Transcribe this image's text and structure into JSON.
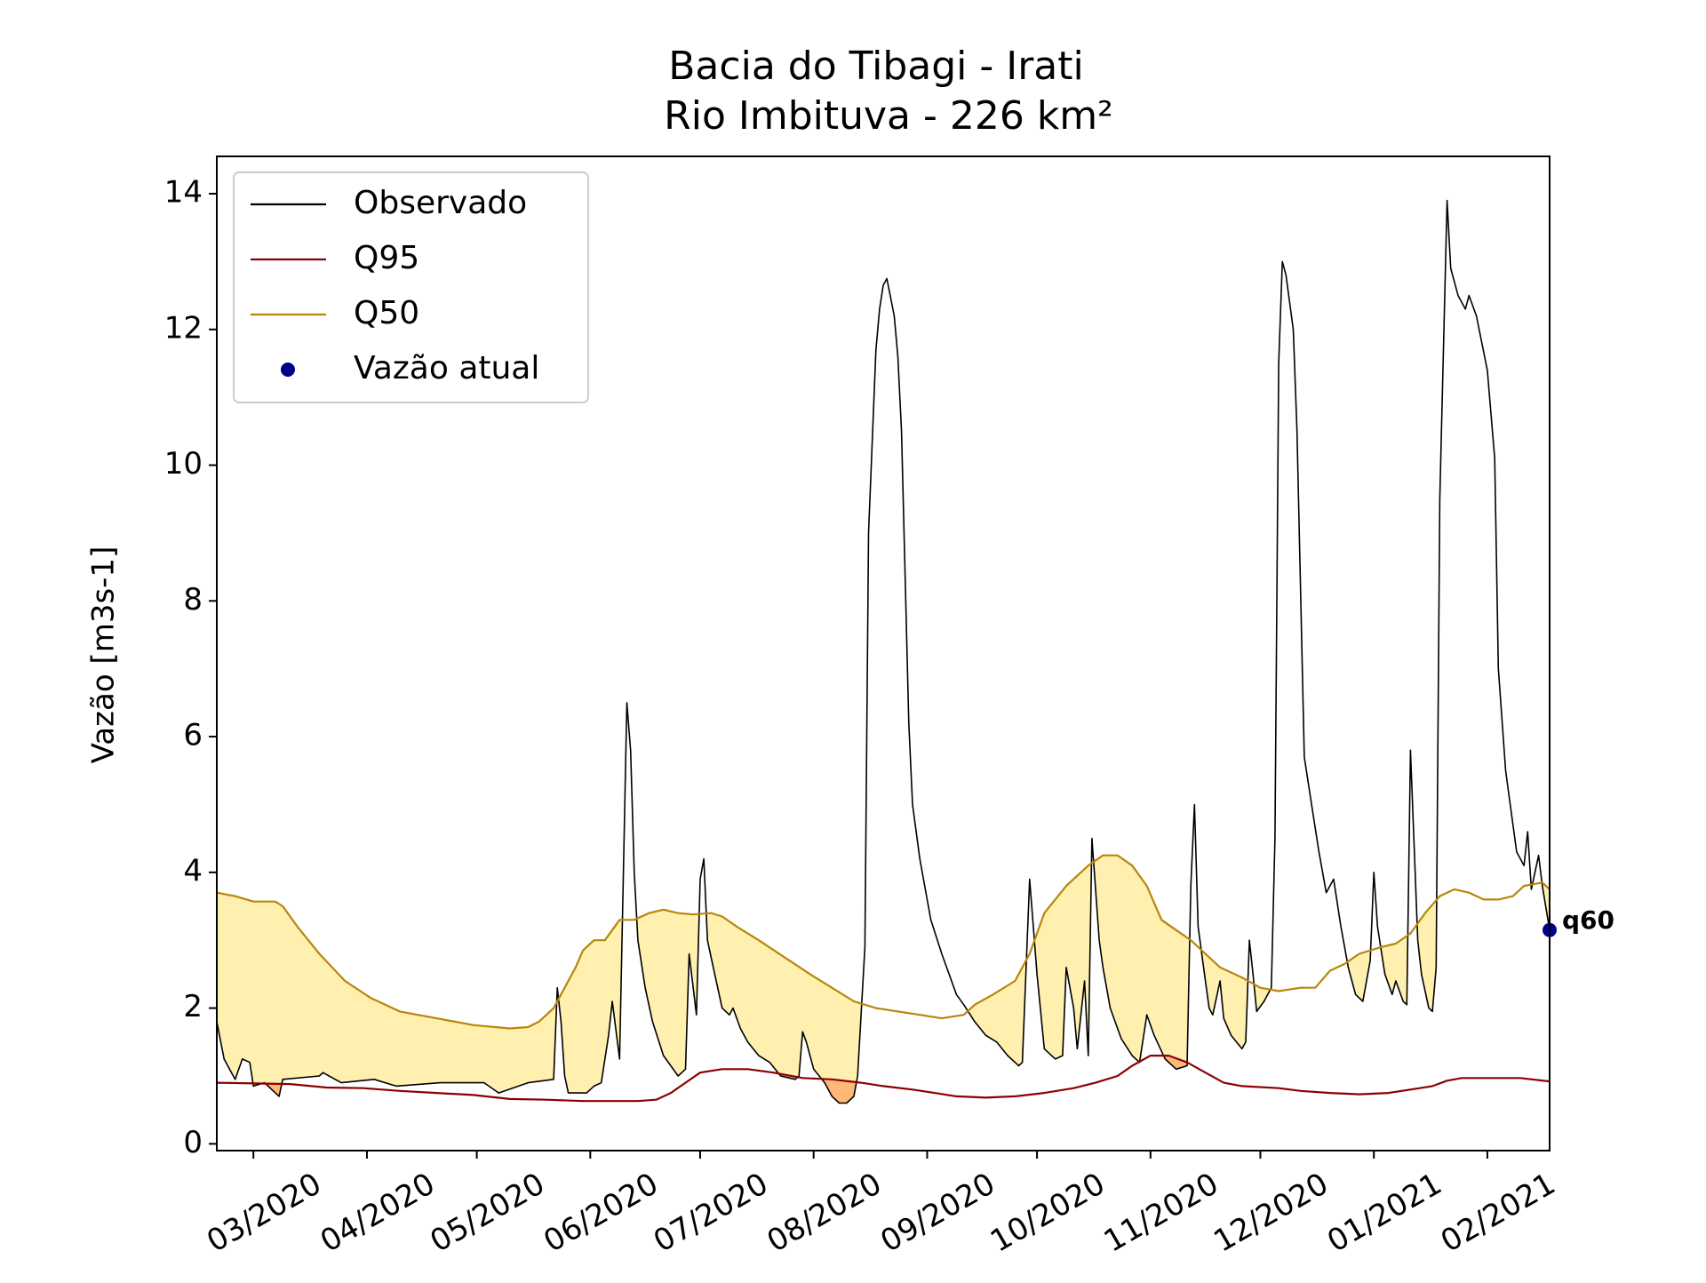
{
  "chart_data": {
    "type": "line",
    "title": "Bacia do Tibagi - Irati",
    "subtitle": "Rio Imbituva - 226 km²",
    "ylabel": "Vazão [m3s-1]",
    "xlim": [
      0,
      364
    ],
    "xticks": [
      {
        "value": 10,
        "label": "03/2020"
      },
      {
        "value": 41,
        "label": "04/2020"
      },
      {
        "value": 71,
        "label": "05/2020"
      },
      {
        "value": 102,
        "label": "06/2020"
      },
      {
        "value": 132,
        "label": "07/2020"
      },
      {
        "value": 163,
        "label": "08/2020"
      },
      {
        "value": 194,
        "label": "09/2020"
      },
      {
        "value": 224,
        "label": "10/2020"
      },
      {
        "value": 255,
        "label": "11/2020"
      },
      {
        "value": 285,
        "label": "12/2020"
      },
      {
        "value": 316,
        "label": "01/2021"
      },
      {
        "value": 347,
        "label": "02/2021"
      }
    ],
    "ylim": [
      -0.1,
      14.55
    ],
    "yticks": [
      0,
      2,
      4,
      6,
      8,
      10,
      12,
      14
    ],
    "legend": "upper left",
    "fill_colors": {
      "below_q50": "#fff0b0",
      "below_q95": "#ffb878"
    },
    "series": [
      {
        "name": "Observado",
        "color": "#000000",
        "x": [
          0,
          2,
          4,
          5,
          7,
          9,
          10,
          13,
          17,
          18,
          28,
          29,
          34,
          43,
          49,
          61,
          73,
          77,
          85,
          92,
          93,
          94,
          95,
          96,
          101,
          103,
          105,
          107,
          108,
          110,
          112,
          113,
          114,
          115,
          117,
          119,
          122,
          126,
          128,
          129,
          131,
          132,
          133,
          134,
          136,
          138,
          140,
          141,
          143,
          145,
          148,
          151,
          154,
          158,
          159,
          160,
          161,
          163,
          166,
          168,
          170,
          172,
          174,
          175,
          177,
          178,
          180,
          181,
          182,
          183,
          185,
          186,
          187,
          189,
          190,
          192,
          195,
          198,
          202,
          204,
          207,
          210,
          213,
          216,
          219,
          220,
          222,
          224,
          226,
          229,
          231,
          232,
          234,
          235,
          237,
          238,
          239,
          241,
          242,
          244,
          247,
          250,
          252,
          254,
          256,
          259,
          262,
          265,
          266,
          267,
          268,
          270,
          271,
          272,
          274,
          275,
          277,
          280,
          281,
          282,
          283,
          284,
          286,
          288,
          289,
          290,
          291,
          292,
          294,
          295,
          297,
          299,
          301,
          303,
          305,
          307,
          309,
          311,
          313,
          315,
          316,
          317,
          319,
          321,
          322,
          324,
          325,
          326,
          328,
          329,
          331,
          332,
          333,
          334,
          336,
          337,
          339,
          341,
          342,
          344,
          347,
          349,
          350,
          352,
          355,
          357,
          358,
          359,
          361,
          362,
          364
        ],
        "values": [
          1.8,
          1.25,
          1.05,
          0.95,
          1.25,
          1.2,
          0.85,
          0.9,
          0.7,
          0.95,
          1.0,
          1.05,
          0.9,
          0.95,
          0.85,
          0.9,
          0.9,
          0.75,
          0.9,
          0.95,
          2.3,
          1.8,
          1.0,
          0.75,
          0.75,
          0.85,
          0.9,
          1.6,
          2.1,
          1.25,
          6.5,
          5.8,
          4.0,
          3.0,
          2.3,
          1.8,
          1.3,
          1.0,
          1.1,
          2.8,
          1.9,
          3.9,
          4.2,
          3.0,
          2.5,
          2.0,
          1.9,
          2.0,
          1.7,
          1.5,
          1.3,
          1.2,
          1.0,
          0.95,
          1.0,
          1.65,
          1.5,
          1.1,
          0.9,
          0.7,
          0.6,
          0.6,
          0.7,
          1.0,
          2.9,
          9.0,
          11.7,
          12.3,
          12.65,
          12.75,
          12.2,
          11.6,
          10.5,
          6.2,
          5.0,
          4.2,
          3.3,
          2.8,
          2.2,
          2.05,
          1.8,
          1.6,
          1.5,
          1.3,
          1.15,
          1.2,
          3.9,
          2.5,
          1.4,
          1.25,
          1.3,
          2.6,
          2.0,
          1.4,
          2.4,
          1.3,
          4.5,
          3.0,
          2.6,
          2.0,
          1.55,
          1.3,
          1.2,
          1.9,
          1.6,
          1.25,
          1.1,
          1.15,
          3.8,
          5.0,
          3.2,
          2.4,
          2.0,
          1.9,
          2.4,
          1.85,
          1.6,
          1.4,
          1.5,
          3.0,
          2.5,
          1.95,
          2.1,
          2.3,
          4.5,
          11.5,
          13.0,
          12.8,
          12.0,
          10.5,
          5.7,
          5.0,
          4.3,
          3.7,
          3.9,
          3.2,
          2.6,
          2.2,
          2.1,
          2.7,
          4.0,
          3.2,
          2.5,
          2.2,
          2.4,
          2.1,
          2.05,
          5.8,
          3.0,
          2.5,
          2.0,
          1.95,
          2.6,
          9.5,
          13.9,
          12.9,
          12.5,
          12.3,
          12.5,
          12.2,
          11.4,
          10.1,
          7.0,
          5.5,
          4.3,
          4.1,
          4.6,
          3.75,
          4.25,
          3.8,
          3.15
        ]
      },
      {
        "name": "Q95",
        "color": "#8b0000",
        "x": [
          0,
          20,
          30,
          40,
          50,
          60,
          70,
          80,
          90,
          100,
          115,
          120,
          124,
          128,
          132,
          138,
          145,
          152,
          160,
          168,
          176,
          182,
          190,
          196,
          202,
          210,
          218,
          226,
          234,
          240,
          246,
          250,
          255,
          260,
          265,
          270,
          275,
          280,
          290,
          296,
          304,
          312,
          320,
          326,
          332,
          336,
          340,
          350,
          356,
          364
        ],
        "values": [
          0.9,
          0.88,
          0.83,
          0.82,
          0.78,
          0.75,
          0.72,
          0.66,
          0.65,
          0.63,
          0.63,
          0.65,
          0.75,
          0.9,
          1.05,
          1.1,
          1.1,
          1.05,
          0.97,
          0.95,
          0.9,
          0.85,
          0.8,
          0.75,
          0.7,
          0.68,
          0.7,
          0.75,
          0.82,
          0.9,
          1.0,
          1.15,
          1.3,
          1.3,
          1.2,
          1.05,
          0.9,
          0.85,
          0.82,
          0.78,
          0.75,
          0.73,
          0.75,
          0.8,
          0.85,
          0.93,
          0.97,
          0.97,
          0.97,
          0.92
        ]
      },
      {
        "name": "Q50",
        "color": "#b8860b",
        "x": [
          0,
          5,
          10,
          16,
          18,
          22,
          28,
          35,
          42,
          50,
          60,
          70,
          80,
          85,
          88,
          92,
          95,
          98,
          100,
          103,
          106,
          110,
          114,
          118,
          122,
          126,
          130,
          135,
          138,
          142,
          148,
          155,
          162,
          168,
          174,
          180,
          186,
          192,
          198,
          204,
          207,
          212,
          218,
          222,
          226,
          232,
          238,
          242,
          246,
          250,
          254,
          258,
          262,
          266,
          270,
          274,
          280,
          285,
          290,
          296,
          300,
          304,
          308,
          312,
          318,
          322,
          326,
          330,
          334,
          338,
          342,
          346,
          350,
          354,
          357,
          362,
          364
        ],
        "values": [
          3.7,
          3.65,
          3.57,
          3.57,
          3.5,
          3.2,
          2.8,
          2.4,
          2.15,
          1.95,
          1.85,
          1.75,
          1.7,
          1.72,
          1.8,
          2.0,
          2.3,
          2.6,
          2.85,
          3.0,
          3.0,
          3.3,
          3.3,
          3.4,
          3.45,
          3.4,
          3.38,
          3.4,
          3.35,
          3.2,
          3.0,
          2.75,
          2.5,
          2.3,
          2.1,
          2.0,
          1.95,
          1.9,
          1.85,
          1.9,
          2.05,
          2.2,
          2.4,
          2.8,
          3.4,
          3.8,
          4.1,
          4.25,
          4.25,
          4.1,
          3.8,
          3.3,
          3.15,
          3.0,
          2.8,
          2.6,
          2.45,
          2.3,
          2.25,
          2.3,
          2.3,
          2.55,
          2.65,
          2.8,
          2.9,
          2.95,
          3.1,
          3.4,
          3.65,
          3.75,
          3.7,
          3.6,
          3.6,
          3.65,
          3.8,
          3.85,
          3.75
        ]
      }
    ],
    "current": {
      "name": "Vazão atual",
      "color": "#00008b",
      "x": [
        364
      ],
      "values": [
        3.15
      ],
      "label": "q60"
    }
  }
}
